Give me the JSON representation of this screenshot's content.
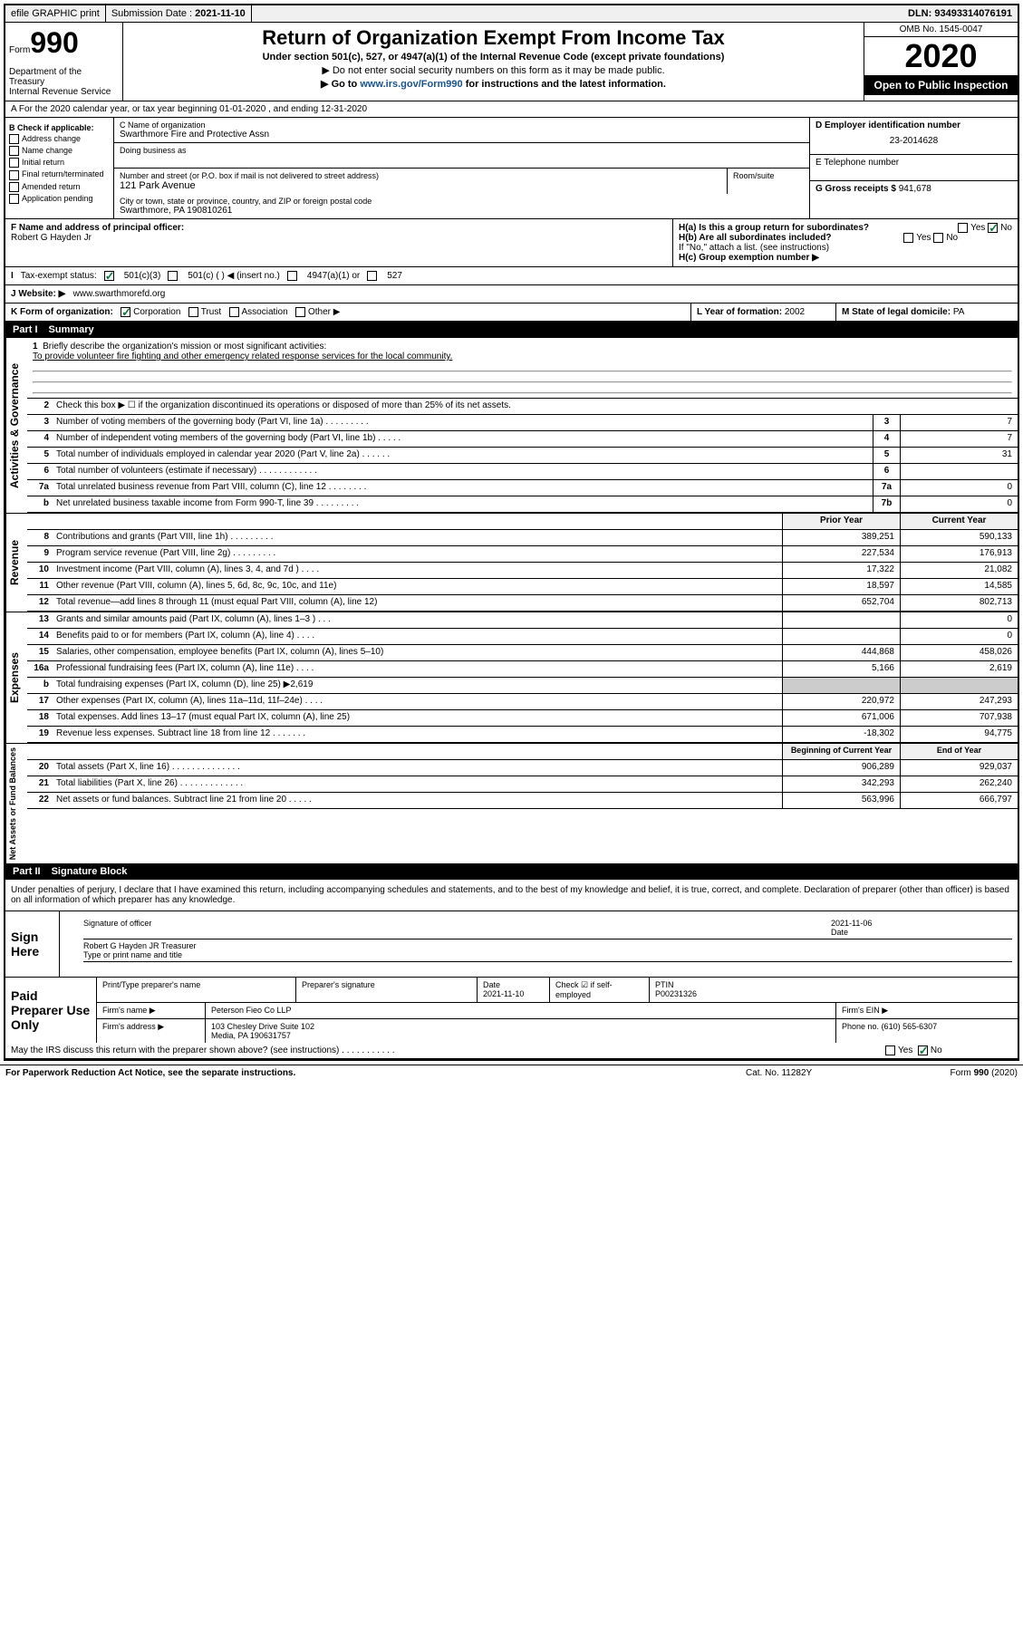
{
  "topbar": {
    "efile": "efile GRAPHIC print",
    "submission_label": "Submission Date :",
    "submission_date": "2021-11-10",
    "dln_label": "DLN:",
    "dln": "93493314076191"
  },
  "header": {
    "form_label": "Form",
    "form_num": "990",
    "dept": "Department of the Treasury\nInternal Revenue Service",
    "title": "Return of Organization Exempt From Income Tax",
    "subtitle": "Under section 501(c), 527, or 4947(a)(1) of the Internal Revenue Code (except private foundations)",
    "instr1": "▶ Do not enter social security numbers on this form as it may be made public.",
    "instr2": "▶ Go to www.irs.gov/Form990 for instructions and the latest information.",
    "omb": "OMB No. 1545-0047",
    "year": "2020",
    "inspection": "Open to Public Inspection"
  },
  "row_a": "A For the 2020 calendar year, or tax year beginning 01-01-2020    , and ending 12-31-2020",
  "col_b": {
    "header": "B Check if applicable:",
    "items": [
      "Address change",
      "Name change",
      "Initial return",
      "Final return/terminated",
      "Amended return",
      "Application pending"
    ]
  },
  "col_c": {
    "name_label": "C Name of organization",
    "name": "Swarthmore Fire and Protective Assn",
    "dba_label": "Doing business as",
    "street_label": "Number and street (or P.O. box if mail is not delivered to street address)",
    "room_label": "Room/suite",
    "street": "121 Park Avenue",
    "city_label": "City or town, state or province, country, and ZIP or foreign postal code",
    "city": "Swarthmore, PA  190810261"
  },
  "col_d": {
    "ein_label": "D Employer identification number",
    "ein": "23-2014628",
    "phone_label": "E Telephone number",
    "gross_label": "G Gross receipts $",
    "gross": "941,678"
  },
  "f": {
    "label": "F Name and address of principal officer:",
    "name": "Robert G Hayden Jr"
  },
  "h": {
    "a": "H(a)  Is this a group return for subordinates?",
    "b": "H(b)  Are all subordinates included?",
    "b_note": "If \"No,\" attach a list. (see instructions)",
    "c": "H(c)  Group exemption number ▶"
  },
  "exempt": {
    "label": "Tax-exempt status:",
    "opts": [
      "501(c)(3)",
      "501(c) (  ) ◀ (insert no.)",
      "4947(a)(1) or",
      "527"
    ]
  },
  "website": {
    "label": "J  Website: ▶",
    "value": "www.swarthmorefd.org"
  },
  "klm": {
    "k": "K Form of organization:",
    "k_opts": [
      "Corporation",
      "Trust",
      "Association",
      "Other ▶"
    ],
    "l_label": "L Year of formation:",
    "l_val": "2002",
    "m_label": "M State of legal domicile:",
    "m_val": "PA"
  },
  "part1": {
    "label": "Part I",
    "title": "Summary"
  },
  "mission": {
    "num": "1",
    "label": "Briefly describe the organization's mission or most significant activities:",
    "text": "To provide volunteer fire fighting and other emergency related response services for the local community."
  },
  "lines_gov": [
    {
      "n": "2",
      "t": "Check this box ▶ ☐  if the organization discontinued its operations or disposed of more than 25% of its net assets."
    },
    {
      "n": "3",
      "t": "Number of voting members of the governing body (Part VI, line 1a)   .    .    .    .    .    .    .    .    .",
      "cn": "3",
      "v": "7"
    },
    {
      "n": "4",
      "t": "Number of independent voting members of the governing body (Part VI, line 1b)   .    .    .    .    .",
      "cn": "4",
      "v": "7"
    },
    {
      "n": "5",
      "t": "Total number of individuals employed in calendar year 2020 (Part V, line 2a)   .    .    .    .    .    .",
      "cn": "5",
      "v": "31"
    },
    {
      "n": "6",
      "t": "Total number of volunteers (estimate if necessary)   .    .    .    .    .    .    .    .    .    .    .    .",
      "cn": "6",
      "v": ""
    },
    {
      "n": "7a",
      "t": "Total unrelated business revenue from Part VIII, column (C), line 12   .    .    .    .    .    .    .    .",
      "cn": "7a",
      "v": "0"
    },
    {
      "n": "b",
      "t": "Net unrelated business taxable income from Form 990-T, line 39   .    .    .    .    .    .    .    .    .",
      "cn": "7b",
      "v": "0"
    }
  ],
  "rev_header": {
    "prior": "Prior Year",
    "current": "Current Year"
  },
  "lines_rev": [
    {
      "n": "8",
      "t": "Contributions and grants (Part VIII, line 1h)   .    .    .    .    .    .    .    .    .",
      "p": "389,251",
      "c": "590,133"
    },
    {
      "n": "9",
      "t": "Program service revenue (Part VIII, line 2g)   .    .    .    .    .    .    .    .    .",
      "p": "227,534",
      "c": "176,913"
    },
    {
      "n": "10",
      "t": "Investment income (Part VIII, column (A), lines 3, 4, and 7d )   .    .    .    .",
      "p": "17,322",
      "c": "21,082"
    },
    {
      "n": "11",
      "t": "Other revenue (Part VIII, column (A), lines 5, 6d, 8c, 9c, 10c, and 11e)",
      "p": "18,597",
      "c": "14,585"
    },
    {
      "n": "12",
      "t": "Total revenue—add lines 8 through 11 (must equal Part VIII, column (A), line 12)",
      "p": "652,704",
      "c": "802,713"
    }
  ],
  "lines_exp": [
    {
      "n": "13",
      "t": "Grants and similar amounts paid (Part IX, column (A), lines 1–3 )   .    .    .",
      "p": "",
      "c": "0"
    },
    {
      "n": "14",
      "t": "Benefits paid to or for members (Part IX, column (A), line 4)   .    .    .    .",
      "p": "",
      "c": "0"
    },
    {
      "n": "15",
      "t": "Salaries, other compensation, employee benefits (Part IX, column (A), lines 5–10)",
      "p": "444,868",
      "c": "458,026"
    },
    {
      "n": "16a",
      "t": "Professional fundraising fees (Part IX, column (A), line 11e)   .    .    .    .",
      "p": "5,166",
      "c": "2,619"
    },
    {
      "n": "b",
      "t": "Total fundraising expenses (Part IX, column (D), line 25) ▶2,619",
      "shaded": true
    },
    {
      "n": "17",
      "t": "Other expenses (Part IX, column (A), lines 11a–11d, 11f–24e)   .    .    .    .",
      "p": "220,972",
      "c": "247,293"
    },
    {
      "n": "18",
      "t": "Total expenses. Add lines 13–17 (must equal Part IX, column (A), line 25)",
      "p": "671,006",
      "c": "707,938"
    },
    {
      "n": "19",
      "t": "Revenue less expenses. Subtract line 18 from line 12   .    .    .    .    .    .    .",
      "p": "-18,302",
      "c": "94,775"
    }
  ],
  "na_header": {
    "prior": "Beginning of Current Year",
    "current": "End of Year"
  },
  "lines_na": [
    {
      "n": "20",
      "t": "Total assets (Part X, line 16)   .    .    .    .    .    .    .    .    .    .    .    .    .    .",
      "p": "906,289",
      "c": "929,037"
    },
    {
      "n": "21",
      "t": "Total liabilities (Part X, line 26)   .    .    .    .    .    .    .    .    .    .    .    .    .",
      "p": "342,293",
      "c": "262,240"
    },
    {
      "n": "22",
      "t": "Net assets or fund balances. Subtract line 21 from line 20   .    .    .    .    .",
      "p": "563,996",
      "c": "666,797"
    }
  ],
  "part2": {
    "label": "Part II",
    "title": "Signature Block"
  },
  "sig_decl": "Under penalties of perjury, I declare that I have examined this return, including accompanying schedules and statements, and to the best of my knowledge and belief, it is true, correct, and complete. Declaration of preparer (other than officer) is based on all information of which preparer has any knowledge.",
  "sign": {
    "label": "Sign Here",
    "sig_label": "Signature of officer",
    "date": "2021-11-06",
    "date_label": "Date",
    "name": "Robert G Hayden JR  Treasurer",
    "name_label": "Type or print name and title"
  },
  "prep": {
    "label": "Paid Preparer Use Only",
    "h1": "Print/Type preparer's name",
    "h2": "Preparer's signature",
    "h3": "Date",
    "h3v": "2021-11-10",
    "h4": "Check ☑ if self-employed",
    "h5": "PTIN",
    "h5v": "P00231326",
    "firm_label": "Firm's name    ▶",
    "firm": "Peterson Fieo Co LLP",
    "ein_label": "Firm's EIN ▶",
    "addr_label": "Firm's address ▶",
    "addr1": "103 Chesley Drive Suite 102",
    "addr2": "Media, PA  190631757",
    "phone_label": "Phone no.",
    "phone": "(610) 565-6307"
  },
  "discuss": "May the IRS discuss this return with the preparer shown above? (see instructions)   .    .    .    .    .    .    .    .    .    .    .",
  "footer": {
    "pra": "For Paperwork Reduction Act Notice, see the separate instructions.",
    "cat": "Cat. No. 11282Y",
    "form": "Form 990 (2020)"
  },
  "labels": {
    "gov": "Activities & Governance",
    "rev": "Revenue",
    "exp": "Expenses",
    "na": "Net Assets or Fund Balances"
  }
}
